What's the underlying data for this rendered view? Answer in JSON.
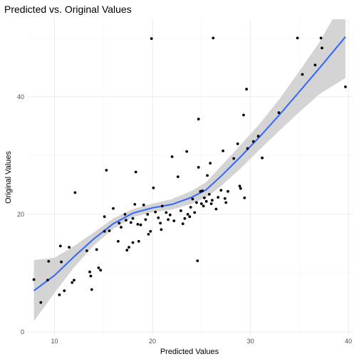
{
  "chart_data": {
    "type": "scatter",
    "title": "Predicted vs. Original Values",
    "xlabel": "Predicted Values",
    "ylabel": "Original Values",
    "xlim": [
      7.2,
      40.5
    ],
    "ylim": [
      -0.5,
      53.2
    ],
    "x_ticks": [
      10,
      20,
      30,
      40
    ],
    "y_ticks": [
      0,
      20,
      40
    ],
    "grid": true,
    "colors": {
      "points": "#000000",
      "smooth_line": "#3366ff",
      "ribbon": "#cccccc"
    },
    "points": [
      [
        7.9,
        8.9
      ],
      [
        8.6,
        5.0
      ],
      [
        9.3,
        8.8
      ],
      [
        9.4,
        12.0
      ],
      [
        10.5,
        6.3
      ],
      [
        10.7,
        11.9
      ],
      [
        10.6,
        14.6
      ],
      [
        11.0,
        7.0
      ],
      [
        11.5,
        14.4
      ],
      [
        11.8,
        8.4
      ],
      [
        12.0,
        8.8
      ],
      [
        12.1,
        23.7
      ],
      [
        13.3,
        13.8
      ],
      [
        13.6,
        10.2
      ],
      [
        13.7,
        9.5
      ],
      [
        13.8,
        7.2
      ],
      [
        14.3,
        14.0
      ],
      [
        14.5,
        10.9
      ],
      [
        14.7,
        10.5
      ],
      [
        15.1,
        17.1
      ],
      [
        15.1,
        19.6
      ],
      [
        15.3,
        27.5
      ],
      [
        15.6,
        17.2
      ],
      [
        16.0,
        21.0
      ],
      [
        16.5,
        15.4
      ],
      [
        16.6,
        18.5
      ],
      [
        16.8,
        17.8
      ],
      [
        17.2,
        20.0
      ],
      [
        17.3,
        19.0
      ],
      [
        17.4,
        13.9
      ],
      [
        17.6,
        14.4
      ],
      [
        17.8,
        18.6
      ],
      [
        18.0,
        19.3
      ],
      [
        18.0,
        15.2
      ],
      [
        18.2,
        21.7
      ],
      [
        18.3,
        27.2
      ],
      [
        18.5,
        18.3
      ],
      [
        18.6,
        15.4
      ],
      [
        18.8,
        18.2
      ],
      [
        19.1,
        21.6
      ],
      [
        19.3,
        19.1
      ],
      [
        19.5,
        20.0
      ],
      [
        19.6,
        16.6
      ],
      [
        19.8,
        17.1
      ],
      [
        19.9,
        49.9
      ],
      [
        20.1,
        24.5
      ],
      [
        20.3,
        20.4
      ],
      [
        20.6,
        19.4
      ],
      [
        20.8,
        18.5
      ],
      [
        20.9,
        17.4
      ],
      [
        21.0,
        21.4
      ],
      [
        21.4,
        20.3
      ],
      [
        21.6,
        19.1
      ],
      [
        21.8,
        19.9
      ],
      [
        22.0,
        29.8
      ],
      [
        22.2,
        18.9
      ],
      [
        22.6,
        26.4
      ],
      [
        22.9,
        20.6
      ],
      [
        23.1,
        18.4
      ],
      [
        23.3,
        19.3
      ],
      [
        23.5,
        30.7
      ],
      [
        23.6,
        20.0
      ],
      [
        23.8,
        19.6
      ],
      [
        23.9,
        21.2
      ],
      [
        24.1,
        22.6
      ],
      [
        24.3,
        20.3
      ],
      [
        24.5,
        22.0
      ],
      [
        24.6,
        12.1
      ],
      [
        24.7,
        36.2
      ],
      [
        24.7,
        28.0
      ],
      [
        24.9,
        23.9
      ],
      [
        25.0,
        21.8
      ],
      [
        25.1,
        24.0
      ],
      [
        25.2,
        21.4
      ],
      [
        25.3,
        22.8
      ],
      [
        25.5,
        22.2
      ],
      [
        25.6,
        26.6
      ],
      [
        25.8,
        23.4
      ],
      [
        25.9,
        28.7
      ],
      [
        26.0,
        21.8
      ],
      [
        26.1,
        22.4
      ],
      [
        26.2,
        50.0
      ],
      [
        26.5,
        20.9
      ],
      [
        26.7,
        22.9
      ],
      [
        27.0,
        24.1
      ],
      [
        27.2,
        30.8
      ],
      [
        27.4,
        22.7
      ],
      [
        27.5,
        22.0
      ],
      [
        27.7,
        23.9
      ],
      [
        28.3,
        29.5
      ],
      [
        28.7,
        32.0
      ],
      [
        28.9,
        24.8
      ],
      [
        29.0,
        24.4
      ],
      [
        29.3,
        36.9
      ],
      [
        29.4,
        22.8
      ],
      [
        29.6,
        41.3
      ],
      [
        29.7,
        31.2
      ],
      [
        30.3,
        32.4
      ],
      [
        30.8,
        33.3
      ],
      [
        31.2,
        29.6
      ],
      [
        32.9,
        37.3
      ],
      [
        34.8,
        50.0
      ],
      [
        35.3,
        43.8
      ],
      [
        36.6,
        45.4
      ],
      [
        37.2,
        50.0
      ],
      [
        37.3,
        48.3
      ],
      [
        39.7,
        41.7
      ]
    ],
    "smooth_fit": {
      "method": "loess",
      "x": [
        7.9,
        10,
        12,
        14,
        16,
        18,
        20,
        22,
        24,
        25.5,
        27,
        29,
        31,
        33,
        35,
        37,
        39.7
      ],
      "y": [
        7.0,
        9.6,
        12.8,
        15.8,
        18.4,
        20.2,
        21.1,
        21.7,
        22.9,
        24.2,
        26.5,
        29.8,
        33.3,
        37.0,
        40.9,
        44.8,
        50.2
      ],
      "lower": [
        1.8,
        6.6,
        11.0,
        14.7,
        17.5,
        19.5,
        20.4,
        20.8,
        21.8,
        22.9,
        24.8,
        27.8,
        31.1,
        34.3,
        37.4,
        40.4,
        43.2
      ],
      "upper": [
        12.2,
        12.6,
        14.6,
        16.9,
        19.3,
        20.9,
        21.8,
        22.6,
        24.0,
        25.5,
        28.2,
        31.8,
        35.5,
        39.7,
        44.4,
        49.2,
        57.0
      ]
    }
  }
}
